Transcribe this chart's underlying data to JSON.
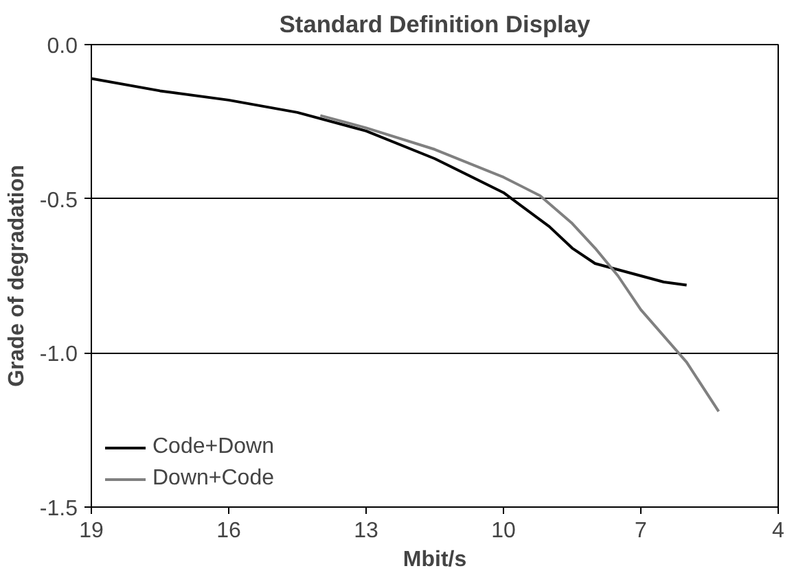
{
  "chart_data": {
    "type": "line",
    "title": "Standard Definition Display",
    "xlabel": "Mbit/s",
    "ylabel": "Grade of degradation",
    "xlim": [
      19,
      4
    ],
    "xticks": [
      19,
      16,
      13,
      10,
      7,
      4
    ],
    "ylim": [
      -1.5,
      0.0
    ],
    "yticks": [
      {
        "value": -1.5,
        "label": "-1.5"
      },
      {
        "value": -1.0,
        "label": "-1.0"
      },
      {
        "value": -0.5,
        "label": "-0.5"
      },
      {
        "value": 0.0,
        "label": "0.0"
      }
    ],
    "grid": "y",
    "legend": "bottom left",
    "line_style": "solid",
    "series": [
      {
        "name": "Code+Down",
        "color": "#000000",
        "x": [
          19,
          17.5,
          16,
          14.5,
          13,
          11.5,
          10,
          9,
          8.5,
          8,
          7.5,
          7,
          6.5,
          6
        ],
        "values": [
          -0.11,
          -0.15,
          -0.18,
          -0.22,
          -0.28,
          -0.37,
          -0.48,
          -0.59,
          -0.66,
          -0.71,
          -0.73,
          -0.75,
          -0.77,
          -0.78
        ]
      },
      {
        "name": "Down+Code",
        "color": "#808080",
        "x": [
          14,
          13,
          11.5,
          10,
          9.2,
          8.5,
          8,
          7.5,
          7,
          6,
          5.3
        ],
        "values": [
          -0.23,
          -0.27,
          -0.34,
          -0.43,
          -0.49,
          -0.58,
          -0.66,
          -0.75,
          -0.86,
          -1.03,
          -1.19
        ]
      }
    ]
  }
}
